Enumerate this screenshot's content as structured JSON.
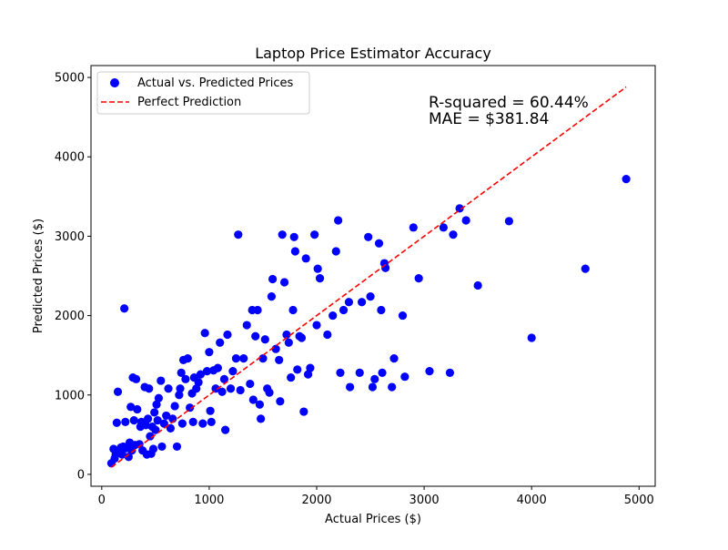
{
  "chart_data": {
    "type": "scatter",
    "title": "Laptop Price Estimator Accuracy",
    "xlabel": "Actual Prices ($)",
    "ylabel": "Predicted Prices ($)",
    "xlim": [
      -100,
      5150
    ],
    "ylim": [
      -150,
      5150
    ],
    "xticks": [
      0,
      1000,
      2000,
      3000,
      4000,
      5000
    ],
    "yticks": [
      0,
      1000,
      2000,
      3000,
      4000,
      5000
    ],
    "grid": false,
    "legend_position": "top-left",
    "colors": {
      "points": "#0000ff",
      "line": "#ff0000"
    },
    "legend": [
      {
        "label": "Actual vs. Predicted Prices",
        "marker": "circle"
      },
      {
        "label": "Perfect Prediction",
        "marker": "dashed-line"
      }
    ],
    "annotations": [
      "R-squared = 60.44%",
      "MAE = $381.84"
    ],
    "series": [
      {
        "name": "Actual vs. Predicted Prices",
        "points": [
          [
            90,
            140
          ],
          [
            110,
            320
          ],
          [
            120,
            200
          ],
          [
            130,
            250
          ],
          [
            140,
            650
          ],
          [
            150,
            1040
          ],
          [
            160,
            300
          ],
          [
            180,
            340
          ],
          [
            190,
            250
          ],
          [
            200,
            350
          ],
          [
            210,
            2090
          ],
          [
            220,
            660
          ],
          [
            230,
            330
          ],
          [
            250,
            220
          ],
          [
            260,
            400
          ],
          [
            270,
            850
          ],
          [
            280,
            300
          ],
          [
            290,
            1220
          ],
          [
            300,
            680
          ],
          [
            310,
            370
          ],
          [
            320,
            1200
          ],
          [
            330,
            820
          ],
          [
            350,
            380
          ],
          [
            360,
            600
          ],
          [
            370,
            660
          ],
          [
            380,
            300
          ],
          [
            400,
            1100
          ],
          [
            410,
            620
          ],
          [
            420,
            250
          ],
          [
            430,
            700
          ],
          [
            440,
            1080
          ],
          [
            450,
            480
          ],
          [
            460,
            260
          ],
          [
            470,
            600
          ],
          [
            480,
            320
          ],
          [
            490,
            780
          ],
          [
            500,
            560
          ],
          [
            510,
            880
          ],
          [
            520,
            680
          ],
          [
            530,
            960
          ],
          [
            550,
            1180
          ],
          [
            560,
            350
          ],
          [
            580,
            640
          ],
          [
            600,
            740
          ],
          [
            620,
            1080
          ],
          [
            640,
            580
          ],
          [
            660,
            700
          ],
          [
            680,
            860
          ],
          [
            700,
            350
          ],
          [
            720,
            1000
          ],
          [
            730,
            1080
          ],
          [
            740,
            1280
          ],
          [
            750,
            640
          ],
          [
            760,
            1440
          ],
          [
            780,
            1200
          ],
          [
            800,
            1460
          ],
          [
            820,
            840
          ],
          [
            840,
            1020
          ],
          [
            850,
            660
          ],
          [
            860,
            1220
          ],
          [
            880,
            1080
          ],
          [
            900,
            1160
          ],
          [
            920,
            1260
          ],
          [
            940,
            640
          ],
          [
            960,
            1780
          ],
          [
            980,
            1300
          ],
          [
            1000,
            1540
          ],
          [
            1010,
            800
          ],
          [
            1020,
            660
          ],
          [
            1040,
            1310
          ],
          [
            1060,
            1080
          ],
          [
            1080,
            1340
          ],
          [
            1100,
            1660
          ],
          [
            1120,
            1040
          ],
          [
            1140,
            1200
          ],
          [
            1150,
            560
          ],
          [
            1170,
            1760
          ],
          [
            1200,
            1080
          ],
          [
            1220,
            1300
          ],
          [
            1250,
            1460
          ],
          [
            1270,
            3020
          ],
          [
            1290,
            1060
          ],
          [
            1320,
            1460
          ],
          [
            1350,
            1880
          ],
          [
            1380,
            1140
          ],
          [
            1400,
            2070
          ],
          [
            1410,
            940
          ],
          [
            1430,
            1740
          ],
          [
            1450,
            2070
          ],
          [
            1470,
            880
          ],
          [
            1480,
            700
          ],
          [
            1500,
            1460
          ],
          [
            1520,
            1700
          ],
          [
            1540,
            1080
          ],
          [
            1560,
            1030
          ],
          [
            1580,
            2240
          ],
          [
            1590,
            2460
          ],
          [
            1620,
            1580
          ],
          [
            1650,
            1440
          ],
          [
            1660,
            920
          ],
          [
            1680,
            3020
          ],
          [
            1700,
            2420
          ],
          [
            1720,
            1760
          ],
          [
            1740,
            1660
          ],
          [
            1760,
            1220
          ],
          [
            1780,
            2070
          ],
          [
            1790,
            2990
          ],
          [
            1800,
            2810
          ],
          [
            1820,
            1320
          ],
          [
            1840,
            1740
          ],
          [
            1860,
            1720
          ],
          [
            1880,
            790
          ],
          [
            1900,
            2720
          ],
          [
            1920,
            1260
          ],
          [
            1940,
            1340
          ],
          [
            1980,
            3020
          ],
          [
            2000,
            1880
          ],
          [
            2010,
            2590
          ],
          [
            2030,
            2470
          ],
          [
            2100,
            1760
          ],
          [
            2150,
            2000
          ],
          [
            2180,
            2810
          ],
          [
            2200,
            3200
          ],
          [
            2220,
            1280
          ],
          [
            2250,
            2070
          ],
          [
            2300,
            2170
          ],
          [
            2310,
            1100
          ],
          [
            2400,
            1280
          ],
          [
            2420,
            2170
          ],
          [
            2480,
            2990
          ],
          [
            2500,
            2240
          ],
          [
            2520,
            1100
          ],
          [
            2540,
            1200
          ],
          [
            2580,
            2910
          ],
          [
            2600,
            2070
          ],
          [
            2610,
            1280
          ],
          [
            2630,
            2660
          ],
          [
            2640,
            2600
          ],
          [
            2700,
            1100
          ],
          [
            2720,
            1460
          ],
          [
            2800,
            2000
          ],
          [
            2820,
            1230
          ],
          [
            2900,
            3110
          ],
          [
            2950,
            2470
          ],
          [
            3050,
            1300
          ],
          [
            3180,
            3110
          ],
          [
            3240,
            1280
          ],
          [
            3270,
            3020
          ],
          [
            3330,
            3350
          ],
          [
            3390,
            3200
          ],
          [
            3500,
            2380
          ],
          [
            3790,
            3190
          ],
          [
            4000,
            1720
          ],
          [
            4500,
            2590
          ],
          [
            4880,
            3720
          ]
        ]
      },
      {
        "name": "Perfect Prediction",
        "points": [
          [
            90,
            90
          ],
          [
            4880,
            4880
          ]
        ]
      }
    ]
  }
}
